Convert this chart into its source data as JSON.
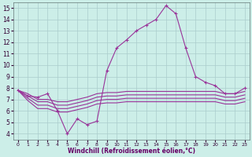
{
  "xlabel": "Windchill (Refroidissement éolien,°C)",
  "bg_color": "#cceee8",
  "grid_color": "#aacccc",
  "line_color": "#993399",
  "x": [
    0,
    1,
    2,
    3,
    4,
    5,
    6,
    7,
    8,
    9,
    10,
    11,
    12,
    13,
    14,
    15,
    16,
    17,
    18,
    19,
    20,
    21,
    22,
    23
  ],
  "y_main": [
    7.8,
    7.3,
    7.2,
    7.5,
    6.0,
    4.0,
    5.3,
    4.8,
    5.1,
    9.5,
    11.5,
    12.2,
    13.0,
    13.5,
    14.0,
    15.2,
    14.5,
    11.5,
    9.0,
    8.5,
    8.2,
    7.5,
    7.5,
    8.0
  ],
  "y_line1": [
    7.8,
    7.5,
    7.0,
    7.0,
    6.8,
    6.8,
    7.0,
    7.2,
    7.5,
    7.6,
    7.6,
    7.7,
    7.7,
    7.7,
    7.7,
    7.7,
    7.7,
    7.7,
    7.7,
    7.7,
    7.7,
    7.5,
    7.5,
    7.7
  ],
  "y_line2": [
    7.8,
    7.3,
    6.8,
    6.8,
    6.5,
    6.5,
    6.7,
    6.9,
    7.2,
    7.3,
    7.3,
    7.4,
    7.4,
    7.4,
    7.4,
    7.4,
    7.4,
    7.4,
    7.4,
    7.4,
    7.4,
    7.2,
    7.2,
    7.4
  ],
  "y_line3": [
    7.8,
    7.1,
    6.5,
    6.5,
    6.2,
    6.2,
    6.4,
    6.6,
    6.9,
    7.0,
    7.0,
    7.1,
    7.1,
    7.1,
    7.1,
    7.1,
    7.1,
    7.1,
    7.1,
    7.1,
    7.1,
    6.9,
    6.9,
    7.1
  ],
  "y_line4": [
    7.8,
    6.9,
    6.2,
    6.2,
    5.9,
    5.9,
    6.1,
    6.3,
    6.6,
    6.7,
    6.7,
    6.8,
    6.8,
    6.8,
    6.8,
    6.8,
    6.8,
    6.8,
    6.8,
    6.8,
    6.8,
    6.6,
    6.6,
    6.8
  ],
  "ylim": [
    3.5,
    15.5
  ],
  "xlim": [
    -0.5,
    23.5
  ],
  "yticks": [
    4,
    5,
    6,
    7,
    8,
    9,
    10,
    11,
    12,
    13,
    14,
    15
  ],
  "xticks": [
    0,
    1,
    2,
    3,
    4,
    5,
    6,
    7,
    8,
    9,
    10,
    11,
    12,
    13,
    14,
    15,
    16,
    17,
    18,
    19,
    20,
    21,
    22,
    23
  ]
}
